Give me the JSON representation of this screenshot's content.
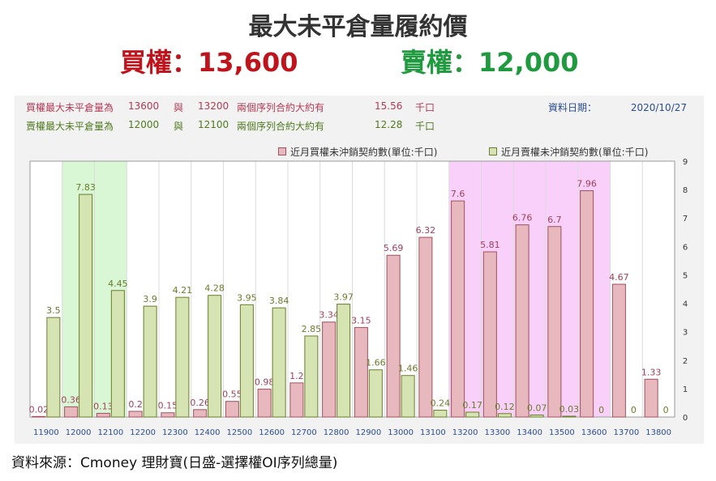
{
  "title": "最大未平倉量履約價",
  "call_max": "買權：13,600",
  "put_max": "賣權：12,000",
  "info": {
    "call_line": {
      "label": "買權最大未平倉量為",
      "strike1": "13600",
      "and": "與",
      "strike2": "13200",
      "desc": "兩個序列合約大約有",
      "amount": "15.56",
      "unit": "千口"
    },
    "put_line": {
      "label": "賣權最大未平倉量為",
      "strike1": "12000",
      "and": "與",
      "strike2": "12100",
      "desc": "兩個序列合約大約有",
      "amount": "12.28",
      "unit": "千口"
    },
    "date_label": "資料日期：",
    "date_value": "2020/10/27"
  },
  "source": "資料來源：Cmoney 理財寶(日盛-選擇權OI序列總量)",
  "colors": {
    "call_bar": "#e8b8bf",
    "call_edge": "#a0505c",
    "put_bar": "#d6e3b2",
    "put_edge": "#6b7d2b",
    "call_label": "#a0405a",
    "put_label": "#6b7d2b",
    "green_band": "#d9f7d4",
    "pink_band": "#f9d0f9",
    "axis_label": "#2a4d8f"
  },
  "chart_data": {
    "type": "bar",
    "categories": [
      "11900",
      "12000",
      "12100",
      "12200",
      "12300",
      "12400",
      "12500",
      "12600",
      "12700",
      "12800",
      "12900",
      "13000",
      "13100",
      "13200",
      "13300",
      "13400",
      "13500",
      "13600",
      "13700",
      "13800"
    ],
    "series": [
      {
        "name": "近月買權未沖銷契約數(單位:千口)",
        "values": [
          0.02,
          0.36,
          0.13,
          0.2,
          0.15,
          0.26,
          0.55,
          0.98,
          1.2,
          3.34,
          3.15,
          5.69,
          6.32,
          7.6,
          5.81,
          6.76,
          6.7,
          7.96,
          4.67,
          1.33
        ]
      },
      {
        "name": "近月賣權未沖銷契約數(單位:千口)",
        "values": [
          3.5,
          7.83,
          4.45,
          3.9,
          4.21,
          4.28,
          3.95,
          3.84,
          2.85,
          3.97,
          1.66,
          1.46,
          0.24,
          0.17,
          0.12,
          0.07,
          0.03,
          0,
          0,
          0
        ]
      }
    ],
    "ylim": [
      0,
      9
    ],
    "yticks": [
      0,
      1,
      2,
      3,
      4,
      5,
      6,
      7,
      8,
      9
    ],
    "highlight_put_range": [
      "12000",
      "12100"
    ],
    "highlight_call_range": [
      "13200",
      "13600"
    ],
    "legend_position": "top-right",
    "grid": true
  }
}
